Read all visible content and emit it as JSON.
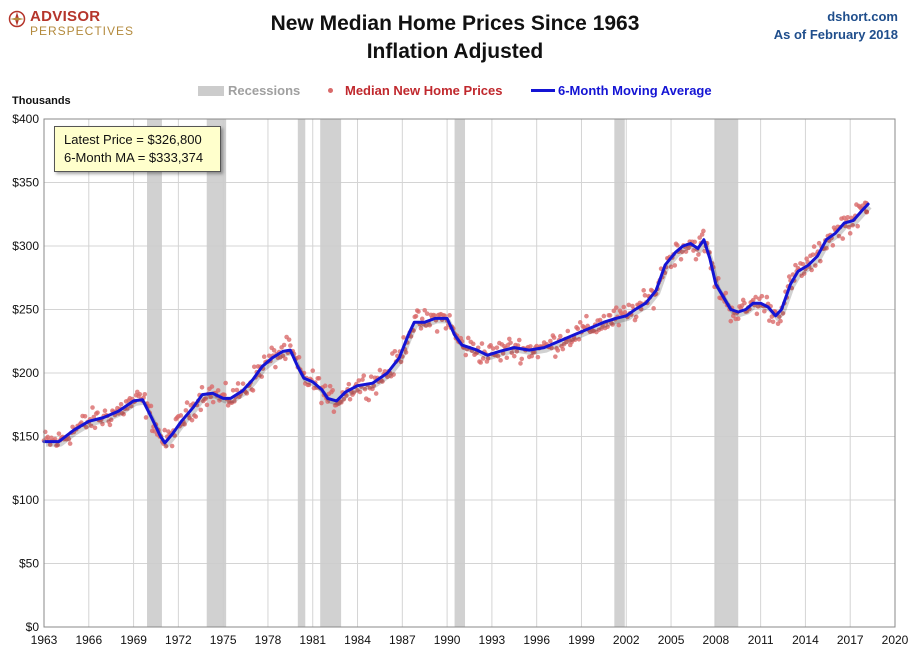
{
  "header": {
    "logo_line1": "ADVISOR",
    "logo_line2": "PERSPECTIVES",
    "title_line1": "New Median Home Prices Since 1963",
    "title_line2": "Inflation Adjusted",
    "source": "dshort.com",
    "date_note": "As of February 2018"
  },
  "callout": {
    "latest_price": "Latest Price = $326,800",
    "moving_average": "6-Month MA = $333,374"
  },
  "colors": {
    "recession": "#cccccc",
    "price_dots": "#d96a6a",
    "moving_average": "#1414d4",
    "grid": "#d4d4d4",
    "title_blue": "#1f4e8c",
    "legend_red": "#c0282d"
  },
  "chart_data": {
    "type": "scatter",
    "title": "New Median Home Prices Since 1963",
    "subtitle": "Inflation Adjusted",
    "ylabel": "Thousands",
    "xlim": [
      1963,
      2020
    ],
    "ylim": [
      0,
      400
    ],
    "x_ticks": [
      1963,
      1966,
      1969,
      1972,
      1975,
      1978,
      1981,
      1984,
      1987,
      1990,
      1993,
      1996,
      1999,
      2002,
      2005,
      2008,
      2011,
      2014,
      2017,
      2020
    ],
    "y_ticks": [
      0,
      50,
      100,
      150,
      200,
      250,
      300,
      350,
      400
    ],
    "y_tick_labels": [
      "$0",
      "$50",
      "$100",
      "$150",
      "$200",
      "$250",
      "$300",
      "$350",
      "$400"
    ],
    "grid": true,
    "legend": [
      "Recessions",
      "Median New Home Prices",
      "6-Month Moving Average"
    ],
    "legend_position": "top-center",
    "recessions": [
      [
        1969.9,
        1970.9
      ],
      [
        1973.9,
        1975.2
      ],
      [
        1980.0,
        1980.5
      ],
      [
        1981.5,
        1982.9
      ],
      [
        1990.5,
        1991.2
      ],
      [
        2001.2,
        2001.9
      ],
      [
        2007.9,
        2009.5
      ]
    ],
    "series": [
      {
        "name": "6-Month Moving Average",
        "style": "line",
        "points": [
          [
            1963.0,
            146
          ],
          [
            1964.0,
            146
          ],
          [
            1965.0,
            155
          ],
          [
            1966.0,
            162
          ],
          [
            1967.0,
            165
          ],
          [
            1968.0,
            170
          ],
          [
            1969.0,
            178
          ],
          [
            1969.6,
            179
          ],
          [
            1970.2,
            165
          ],
          [
            1970.8,
            150
          ],
          [
            1971.1,
            145
          ],
          [
            1971.6,
            152
          ],
          [
            1972.2,
            162
          ],
          [
            1973.0,
            173
          ],
          [
            1973.6,
            183
          ],
          [
            1974.3,
            184
          ],
          [
            1975.0,
            180
          ],
          [
            1975.5,
            180
          ],
          [
            1976.3,
            186
          ],
          [
            1977.0,
            195
          ],
          [
            1977.6,
            205
          ],
          [
            1978.3,
            212
          ],
          [
            1979.0,
            217
          ],
          [
            1979.5,
            218
          ],
          [
            1980.0,
            205
          ],
          [
            1980.4,
            196
          ],
          [
            1981.0,
            193
          ],
          [
            1981.6,
            187
          ],
          [
            1982.0,
            180
          ],
          [
            1982.6,
            178
          ],
          [
            1983.2,
            185
          ],
          [
            1984.0,
            190
          ],
          [
            1985.0,
            192
          ],
          [
            1986.0,
            200
          ],
          [
            1986.8,
            212
          ],
          [
            1987.4,
            230
          ],
          [
            1987.8,
            240
          ],
          [
            1988.5,
            240
          ],
          [
            1989.2,
            243
          ],
          [
            1990.0,
            243
          ],
          [
            1990.5,
            230
          ],
          [
            1991.0,
            222
          ],
          [
            1992.0,
            218
          ],
          [
            1992.7,
            214
          ],
          [
            1993.5,
            217
          ],
          [
            1994.5,
            220
          ],
          [
            1995.5,
            218
          ],
          [
            1996.5,
            220
          ],
          [
            1997.5,
            225
          ],
          [
            1998.5,
            230
          ],
          [
            1999.5,
            235
          ],
          [
            2000.5,
            240
          ],
          [
            2001.3,
            243
          ],
          [
            2002.0,
            245
          ],
          [
            2002.6,
            250
          ],
          [
            2003.3,
            255
          ],
          [
            2004.0,
            265
          ],
          [
            2004.6,
            285
          ],
          [
            2005.3,
            295
          ],
          [
            2005.8,
            300
          ],
          [
            2006.3,
            302
          ],
          [
            2006.8,
            298
          ],
          [
            2007.2,
            305
          ],
          [
            2007.6,
            290
          ],
          [
            2008.0,
            270
          ],
          [
            2008.5,
            260
          ],
          [
            2009.0,
            250
          ],
          [
            2009.5,
            248
          ],
          [
            2010.0,
            250
          ],
          [
            2010.5,
            255
          ],
          [
            2011.0,
            255
          ],
          [
            2011.5,
            252
          ],
          [
            2012.0,
            245
          ],
          [
            2012.4,
            250
          ],
          [
            2013.0,
            270
          ],
          [
            2013.5,
            280
          ],
          [
            2014.2,
            285
          ],
          [
            2014.8,
            292
          ],
          [
            2015.4,
            305
          ],
          [
            2016.0,
            310
          ],
          [
            2016.6,
            318
          ],
          [
            2017.2,
            320
          ],
          [
            2017.8,
            328
          ],
          [
            2018.2,
            333
          ]
        ]
      },
      {
        "name": "Median New Home Prices",
        "style": "dots",
        "note": "Monthly observations scatter around the 6-month moving average (roughly ±8)."
      }
    ],
    "latest": {
      "price": 326.8,
      "moving_average": 333.374
    }
  }
}
